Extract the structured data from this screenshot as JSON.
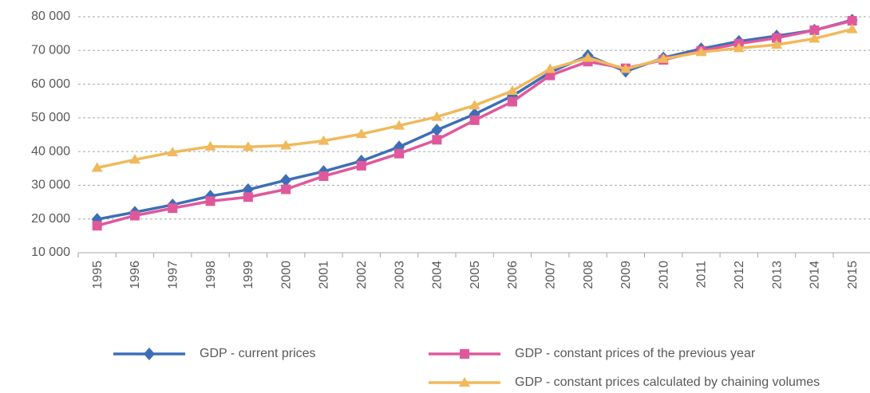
{
  "chart_data": {
    "type": "line",
    "categories": [
      "1995",
      "1996",
      "1997",
      "1998",
      "1999",
      "2000",
      "2001",
      "2002",
      "2003",
      "2004",
      "2005",
      "2006",
      "2007",
      "2008",
      "2009",
      "2010",
      "2011",
      "2012",
      "2013",
      "2014",
      "2015"
    ],
    "series": [
      {
        "name": "GDP - current prices",
        "color": "#3d6fb6",
        "marker": "diamond",
        "values": [
          19900,
          22000,
          24200,
          26800,
          28700,
          31500,
          34100,
          37200,
          41400,
          46400,
          51100,
          56500,
          63500,
          68500,
          63800,
          67800,
          70500,
          72700,
          74300,
          76000,
          79000
        ]
      },
      {
        "name": "GDP - constant prices of the previous year",
        "color": "#e0589c",
        "marker": "square",
        "values": [
          18000,
          21000,
          23200,
          25300,
          26500,
          28800,
          32700,
          35800,
          39400,
          43500,
          49300,
          54800,
          62600,
          66700,
          64700,
          67200,
          69900,
          72000,
          73700,
          76000,
          78800
        ]
      },
      {
        "name": "GDP - constant prices calculated by chaining volumes",
        "color": "#f0b95c",
        "marker": "triangle",
        "values": [
          35200,
          37600,
          39800,
          41500,
          41400,
          41800,
          43200,
          45200,
          47700,
          50300,
          53700,
          58000,
          64500,
          67800,
          64500,
          67500,
          69500,
          70700,
          71700,
          73500,
          76300
        ]
      }
    ],
    "ylim": [
      10000,
      80000
    ],
    "yticks": [
      {
        "value": 10000,
        "label": "10 000"
      },
      {
        "value": 20000,
        "label": "20 000"
      },
      {
        "value": 30000,
        "label": "30 000"
      },
      {
        "value": 40000,
        "label": "40 000"
      },
      {
        "value": 50000,
        "label": "50 000"
      },
      {
        "value": 60000,
        "label": "60 000"
      },
      {
        "value": 70000,
        "label": "70 000"
      },
      {
        "value": 80000,
        "label": "80 000"
      }
    ],
    "grid": true,
    "legend": "bottom"
  }
}
